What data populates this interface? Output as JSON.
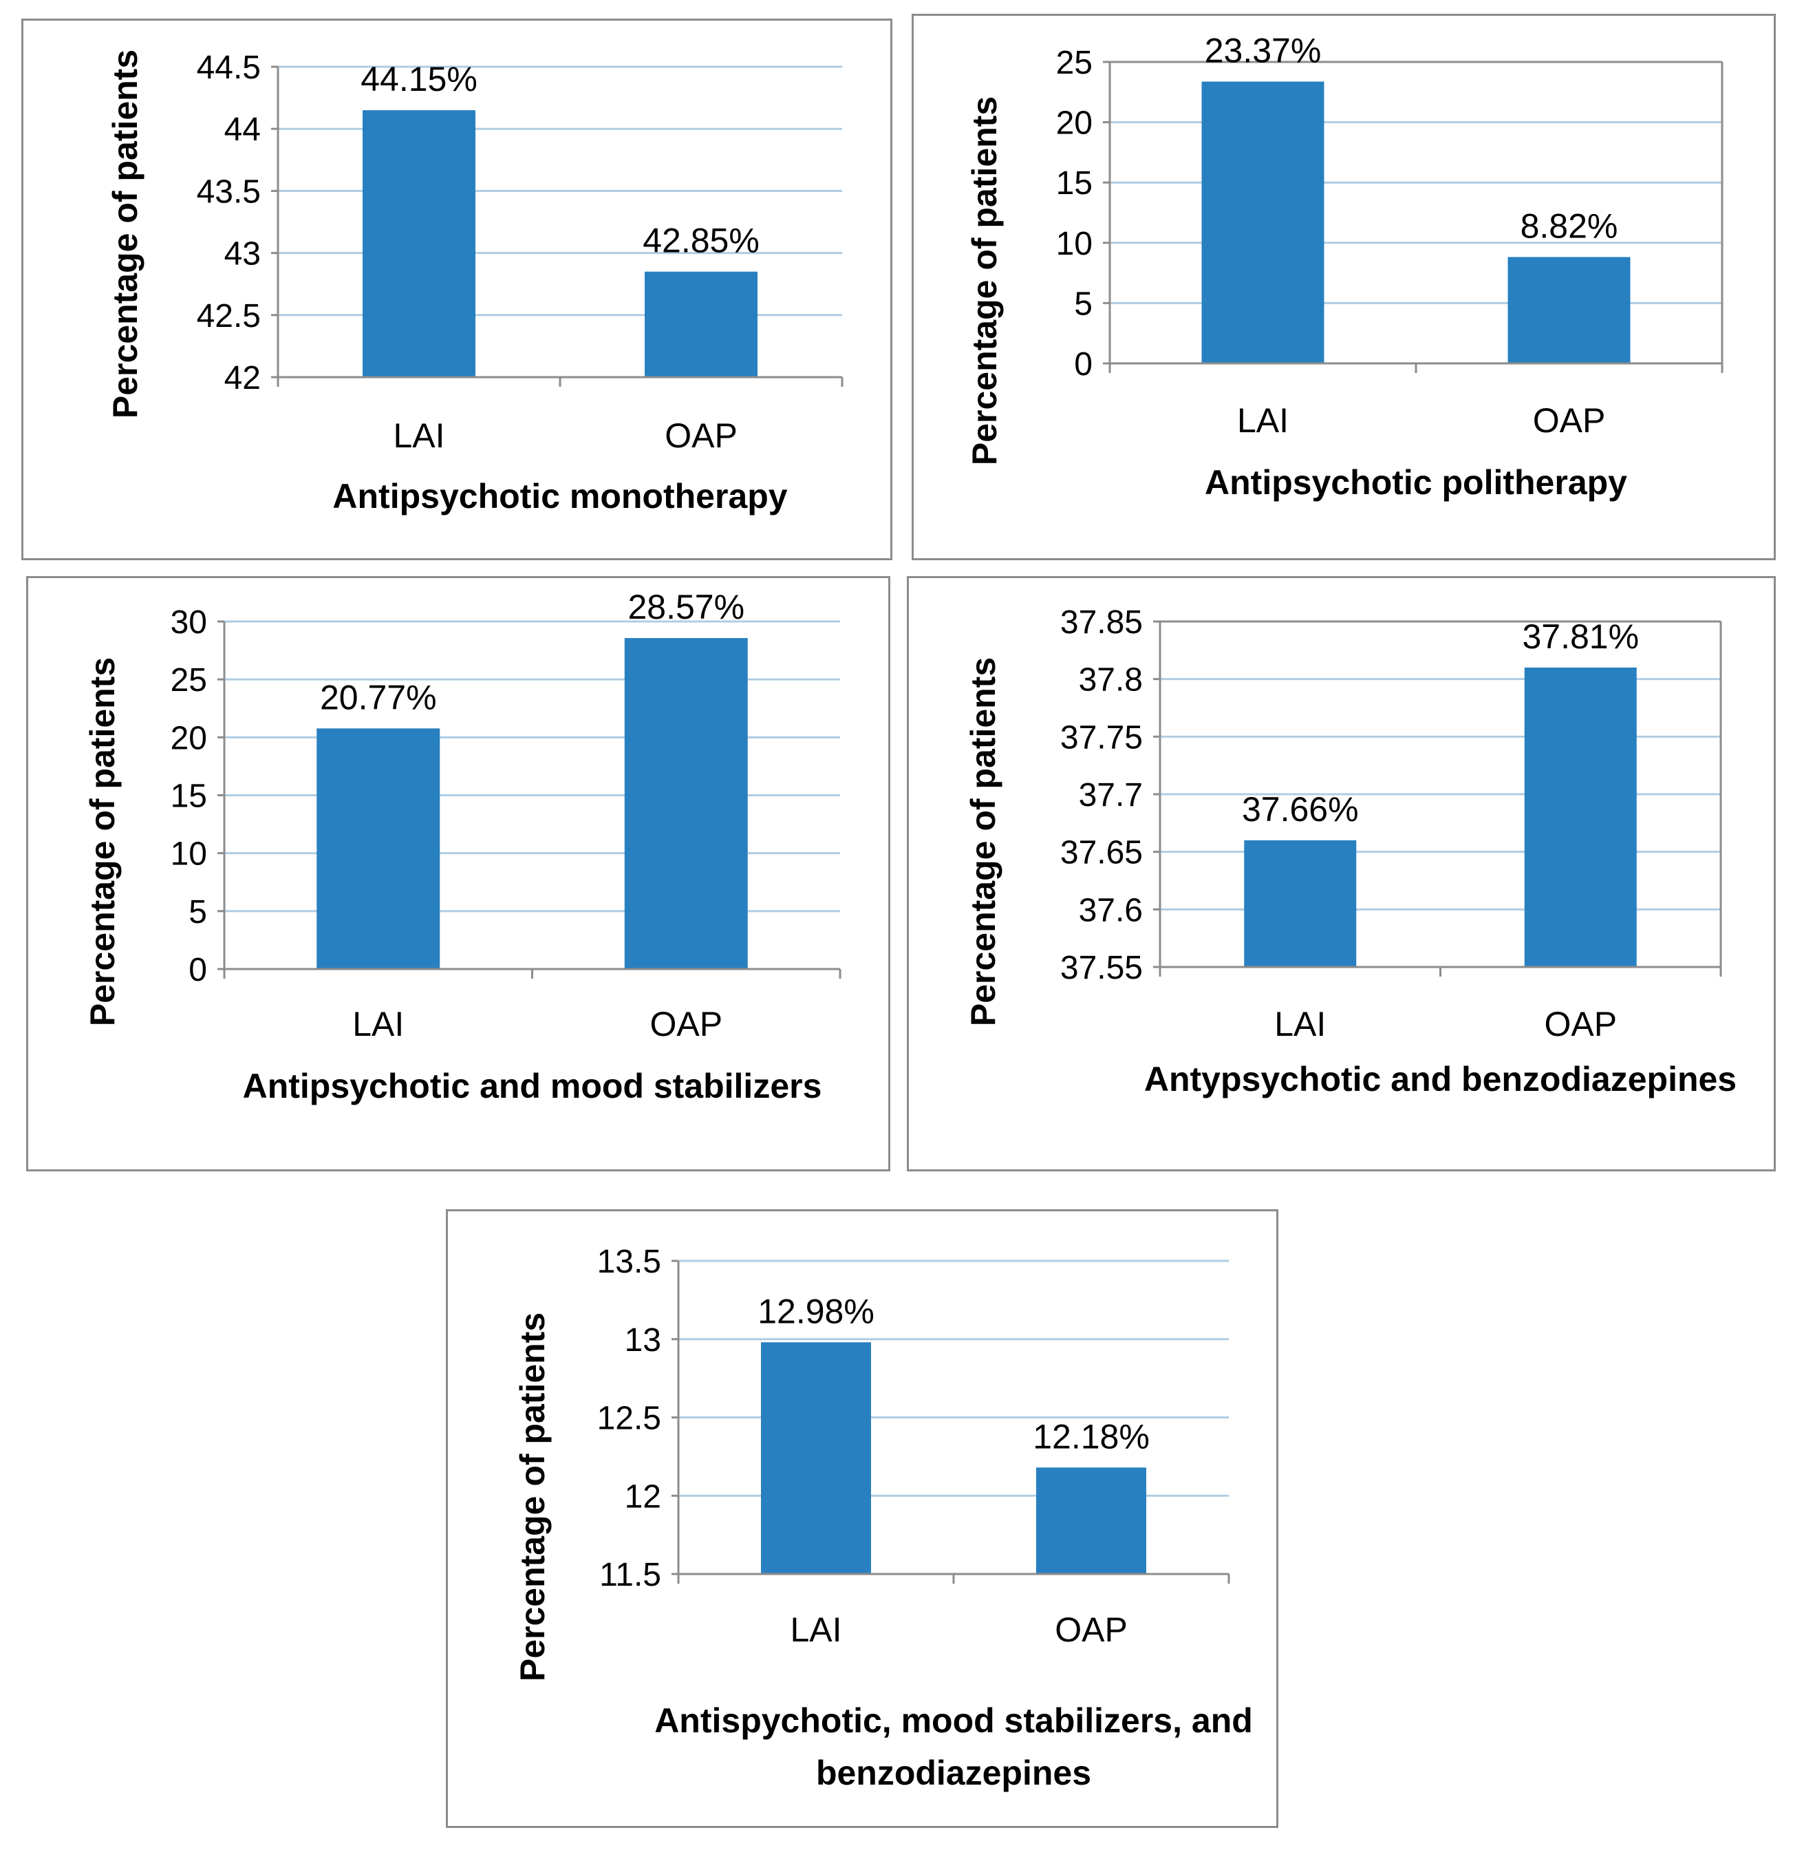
{
  "colors": {
    "bar": "#2880c0",
    "grid": "#aecde4",
    "axis": "#8c8c8c",
    "text": "#000000"
  },
  "chart_data": [
    {
      "type": "bar",
      "categories": [
        "LAI",
        "OAP"
      ],
      "values": [
        44.15,
        42.85
      ],
      "data_labels": [
        "44.15%",
        "42.85%"
      ],
      "ylabel": "Percentage of patients",
      "xlabel": "Antipsychotic monotherapy",
      "ylim": [
        42,
        44.5
      ],
      "yticks": [
        "42",
        "42.5",
        "43",
        "43.5",
        "44",
        "44.5"
      ],
      "grid": true
    },
    {
      "type": "bar",
      "categories": [
        "LAI",
        "OAP"
      ],
      "values": [
        23.37,
        8.82
      ],
      "data_labels": [
        "23.37%",
        "8.82%"
      ],
      "ylabel": "Percentage of patients",
      "xlabel": "Antipsychotic politherapy",
      "ylim": [
        0,
        25
      ],
      "yticks": [
        "0",
        "5",
        "10",
        "15",
        "20",
        "25"
      ],
      "grid": true
    },
    {
      "type": "bar",
      "categories": [
        "LAI",
        "OAP"
      ],
      "values": [
        20.77,
        28.57
      ],
      "data_labels": [
        "20.77%",
        "28.57%"
      ],
      "ylabel": "Percentage of patients",
      "xlabel": "Antipsychotic and mood stabilizers",
      "ylim": [
        0,
        30
      ],
      "yticks": [
        "0",
        "5",
        "10",
        "15",
        "20",
        "25",
        "30"
      ],
      "grid": true
    },
    {
      "type": "bar",
      "categories": [
        "LAI",
        "OAP"
      ],
      "values": [
        37.66,
        37.81
      ],
      "data_labels": [
        "37.66%",
        "37.81%"
      ],
      "ylabel": "Percentage of patients",
      "xlabel": "Antypsychotic and benzodiazepines",
      "ylim": [
        37.55,
        37.85
      ],
      "yticks": [
        "37.55",
        "37.6",
        "37.65",
        "37.7",
        "37.75",
        "37.8",
        "37.85"
      ],
      "grid": true
    },
    {
      "type": "bar",
      "categories": [
        "LAI",
        "OAP"
      ],
      "values": [
        12.98,
        12.18
      ],
      "data_labels": [
        "12.98%",
        "12.18%"
      ],
      "ylabel": "Percentage of patients",
      "xlabel": [
        "Antispychotic, mood stabilizers, and",
        "benzodiazepines"
      ],
      "ylim": [
        11.5,
        13.5
      ],
      "yticks": [
        "11.5",
        "12",
        "12.5",
        "13",
        "13.5"
      ],
      "grid": true
    }
  ]
}
